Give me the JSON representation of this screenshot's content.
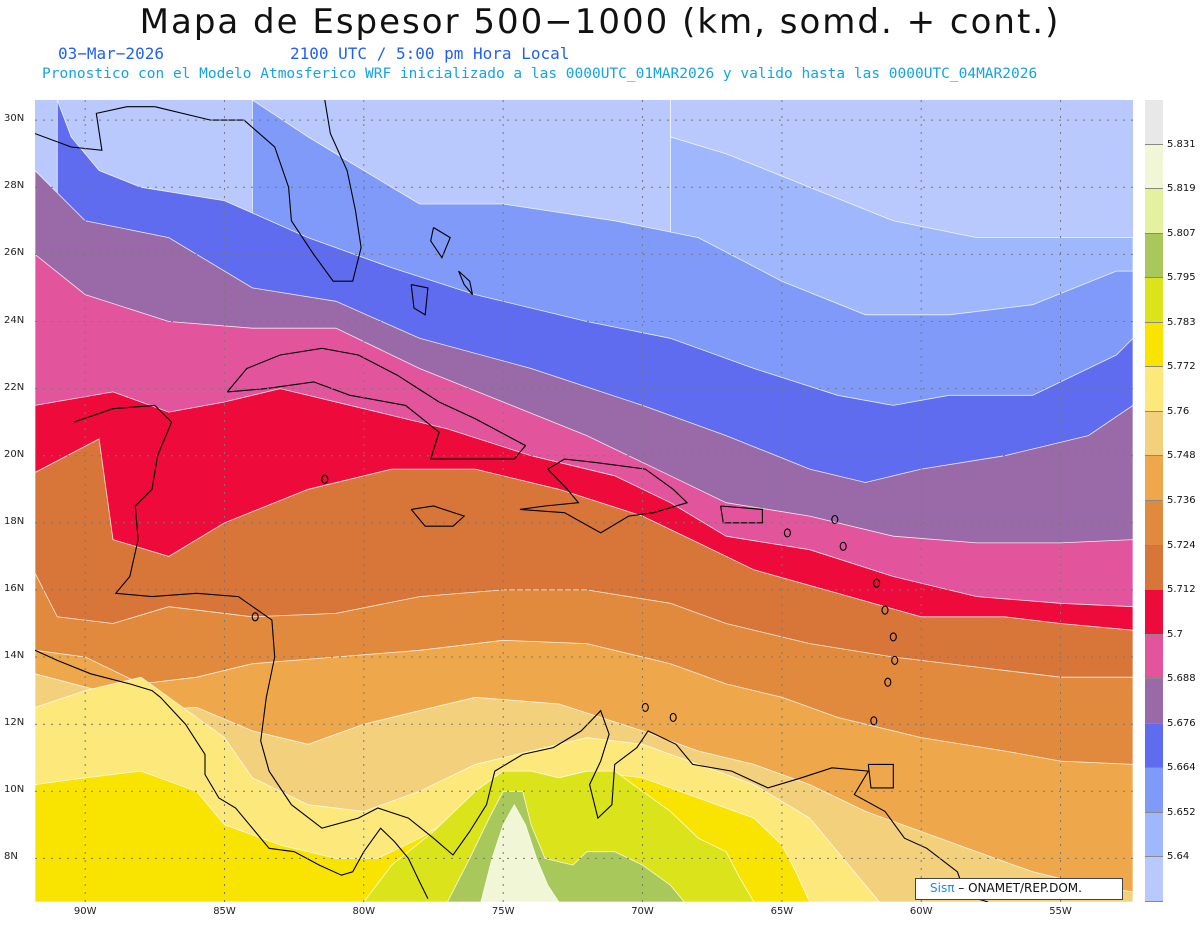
{
  "title": "Mapa de Espesor 500−1000 (km, somd. + cont.)",
  "date": "03−Mar−2026",
  "time": "2100 UTC / 5:00 pm Hora Local",
  "description": "Pronostico con el Modelo Atmosferico WRF inicializado a las 0000UTC_01MAR2026 y valido hasta las  0000UTC_04MAR2026",
  "credit": {
    "sis": "Sisπ",
    "rest": "– ONAMET/REP.DOM."
  },
  "lat_labels": [
    "30N",
    "28N",
    "26N",
    "24N",
    "22N",
    "20N",
    "18N",
    "16N",
    "14N",
    "12N",
    "10N",
    "8N"
  ],
  "lon_labels": [
    "90W",
    "85W",
    "80W",
    "75W",
    "70W",
    "65W",
    "60W",
    "55W"
  ],
  "colorbar": {
    "labels": [
      "5.831",
      "5.819",
      "5.807",
      "5.795",
      "5.783",
      "5.772",
      "5.76",
      "5.748",
      "5.736",
      "5.724",
      "5.712",
      "5.7",
      "5.688",
      "5.676",
      "5.664",
      "5.652",
      "5.64"
    ],
    "colors": [
      "#e8e8e8",
      "#f1f6d6",
      "#e4f2a0",
      "#a8c85c",
      "#dbe31a",
      "#f8e400",
      "#fde87c",
      "#f3d07c",
      "#eea84b",
      "#e18a3d",
      "#d8763a",
      "#ee0a3a",
      "#e2559c",
      "#9a6aa8",
      "#5f6cf0",
      "#7f9af8",
      "#9fb8fd",
      "#b9c8fd"
    ]
  },
  "map": {
    "projection": "plate-carree",
    "lon_range": [
      -91.8,
      -52.4
    ],
    "lat_range": [
      6.7,
      30.6
    ],
    "layers": [
      {
        "name": "5.652-5.664",
        "color": "#9fb8fd",
        "boundary": [
          [
            -69,
            30.6
          ],
          [
            -69,
            29.5
          ],
          [
            -67,
            29
          ],
          [
            -64,
            28
          ],
          [
            -61,
            27
          ],
          [
            -58,
            26.5
          ],
          [
            -55,
            26.5
          ],
          [
            -52.4,
            26.5
          ]
        ]
      },
      {
        "name": "5.664-5.676",
        "color": "#7f9af8",
        "boundary": [
          [
            -84,
            30.6
          ],
          [
            -82,
            29.5
          ],
          [
            -80,
            28.5
          ],
          [
            -78,
            27.5
          ],
          [
            -75,
            27.5
          ],
          [
            -71,
            27
          ],
          [
            -68,
            26.5
          ],
          [
            -65,
            25.2
          ],
          [
            -62,
            24.2
          ],
          [
            -59,
            24.2
          ],
          [
            -56,
            24.5
          ],
          [
            -53,
            25.5
          ],
          [
            -52.4,
            25.5
          ]
        ]
      },
      {
        "name": "5.676-5.688",
        "color": "#5f6cf0",
        "boundary": [
          [
            -91,
            30.6
          ],
          [
            -90.5,
            29.5
          ],
          [
            -89.5,
            28.5
          ],
          [
            -88,
            28
          ],
          [
            -85,
            27.6
          ],
          [
            -82,
            26.5
          ],
          [
            -79,
            25.6
          ],
          [
            -76,
            24.8
          ],
          [
            -72,
            24
          ],
          [
            -69,
            23.5
          ],
          [
            -66,
            22.6
          ],
          [
            -63,
            21.8
          ],
          [
            -61,
            21.5
          ],
          [
            -59,
            21.8
          ],
          [
            -56,
            21.8
          ],
          [
            -53,
            23
          ],
          [
            -52.4,
            23.5
          ]
        ]
      },
      {
        "name": "5.688-5.7",
        "color": "#9a6aa8",
        "boundary": [
          [
            -91.8,
            28.5
          ],
          [
            -90,
            27
          ],
          [
            -87,
            26.5
          ],
          [
            -84,
            25
          ],
          [
            -81,
            24.6
          ],
          [
            -78,
            23.5
          ],
          [
            -74,
            22.6
          ],
          [
            -70,
            21.5
          ],
          [
            -67,
            20.6
          ],
          [
            -64,
            19.6
          ],
          [
            -62,
            19.2
          ],
          [
            -60,
            19.6
          ],
          [
            -57,
            20
          ],
          [
            -54,
            20.6
          ],
          [
            -52.4,
            21.5
          ]
        ]
      },
      {
        "name": "5.7-5.712",
        "color": "#e2559c",
        "boundary": [
          [
            -91.8,
            26
          ],
          [
            -90,
            24.8
          ],
          [
            -87,
            24
          ],
          [
            -84,
            23.8
          ],
          [
            -81,
            23.8
          ],
          [
            -78,
            22.6
          ],
          [
            -75,
            21.6
          ],
          [
            -72,
            20.6
          ],
          [
            -69,
            19.4
          ],
          [
            -67,
            18.6
          ],
          [
            -64,
            18.2
          ],
          [
            -61,
            17.6
          ],
          [
            -58,
            17.4
          ],
          [
            -55,
            17.4
          ],
          [
            -52.4,
            17.5
          ]
        ]
      },
      {
        "name": "5.712-5.724",
        "color": "#ee0a3a",
        "boundary": [
          [
            -91.8,
            21.5
          ],
          [
            -89,
            21.9
          ],
          [
            -87,
            21.3
          ],
          [
            -85,
            21.6
          ],
          [
            -83,
            22
          ],
          [
            -80,
            21.4
          ],
          [
            -77,
            20.8
          ],
          [
            -74,
            20
          ],
          [
            -71,
            19.4
          ],
          [
            -69,
            18.6
          ],
          [
            -67,
            17.6
          ],
          [
            -64,
            17.2
          ],
          [
            -61,
            16.4
          ],
          [
            -58,
            15.8
          ],
          [
            -55,
            15.6
          ],
          [
            -52.4,
            15.5
          ]
        ]
      },
      {
        "name": "5.724-5.736",
        "color": "#d8763a",
        "boundary": [
          [
            -91.8,
            19.5
          ],
          [
            -89.5,
            20.5
          ],
          [
            -89,
            17.5
          ],
          [
            -87,
            17
          ],
          [
            -85,
            18
          ],
          [
            -82,
            19
          ],
          [
            -79,
            19.6
          ],
          [
            -76,
            19.6
          ],
          [
            -73,
            19
          ],
          [
            -70,
            18.2
          ],
          [
            -68,
            17.4
          ],
          [
            -66,
            16.6
          ],
          [
            -63,
            15.9
          ],
          [
            -60,
            15.2
          ],
          [
            -57,
            15.2
          ],
          [
            -55,
            15
          ],
          [
            -52.4,
            14.8
          ]
        ]
      },
      {
        "name": "5.736-5.748",
        "color": "#e18a3d",
        "boundary": [
          [
            -91.8,
            16.5
          ],
          [
            -91,
            15.2
          ],
          [
            -89,
            15
          ],
          [
            -87,
            15.5
          ],
          [
            -84,
            15.2
          ],
          [
            -81,
            15.3
          ],
          [
            -78,
            15.8
          ],
          [
            -75,
            16
          ],
          [
            -72,
            16
          ],
          [
            -69,
            15.6
          ],
          [
            -67,
            15
          ],
          [
            -64,
            14.4
          ],
          [
            -61,
            14
          ],
          [
            -58,
            13.7
          ],
          [
            -55,
            13.4
          ],
          [
            -52.4,
            13.4
          ]
        ]
      },
      {
        "name": "5.748-5.76",
        "color": "#eea84b",
        "boundary": [
          [
            -91.8,
            14.2
          ],
          [
            -90,
            14
          ],
          [
            -88,
            13.2
          ],
          [
            -86,
            13.4
          ],
          [
            -84,
            13.8
          ],
          [
            -81,
            14
          ],
          [
            -78,
            14.2
          ],
          [
            -75,
            14.5
          ],
          [
            -72,
            14.4
          ],
          [
            -69,
            13.8
          ],
          [
            -67,
            13.2
          ],
          [
            -65,
            12.8
          ],
          [
            -63,
            12.2
          ],
          [
            -60,
            11.6
          ],
          [
            -57,
            11.2
          ],
          [
            -55,
            10.9
          ],
          [
            -52.4,
            10.8
          ]
        ]
      },
      {
        "name": "5.76-5.772",
        "color": "#f3d07c",
        "boundary": [
          [
            -91.8,
            13.5
          ],
          [
            -89.5,
            13
          ],
          [
            -88,
            12.4
          ],
          [
            -86,
            12.5
          ],
          [
            -84,
            11.8
          ],
          [
            -82,
            11.4
          ],
          [
            -80,
            12
          ],
          [
            -78,
            12.4
          ],
          [
            -76,
            12.8
          ],
          [
            -73,
            12.6
          ],
          [
            -70,
            11.8
          ],
          [
            -68,
            11.2
          ],
          [
            -66,
            10.8
          ],
          [
            -64,
            10.2
          ],
          [
            -62,
            9.4
          ],
          [
            -60,
            8.8
          ],
          [
            -58,
            8.2
          ],
          [
            -56,
            7.6
          ],
          [
            -54,
            7.2
          ],
          [
            -52.4,
            7
          ]
        ]
      },
      {
        "name": "5.772-5.783",
        "color": "#fde87c",
        "boundary": [
          [
            -91.8,
            12.5
          ],
          [
            -90,
            13
          ],
          [
            -88,
            13.4
          ],
          [
            -87,
            12.8
          ],
          [
            -85,
            11.6
          ],
          [
            -84,
            10.4
          ],
          [
            -82,
            9.6
          ],
          [
            -80,
            9.4
          ],
          [
            -78,
            10
          ],
          [
            -76,
            10.8
          ],
          [
            -74,
            11.2
          ],
          [
            -72,
            11.6
          ],
          [
            -70,
            11.4
          ],
          [
            -68,
            10.8
          ],
          [
            -66,
            10.2
          ],
          [
            -64,
            9.2
          ],
          [
            -63,
            8.2
          ],
          [
            -62,
            7.2
          ],
          [
            -61.5,
            6.7
          ]
        ]
      },
      {
        "name": "5.783-5.795",
        "color": "#f8e400",
        "boundary": [
          [
            -91.8,
            10.2
          ],
          [
            -90,
            10.4
          ],
          [
            -88,
            10.6
          ],
          [
            -86,
            10
          ],
          [
            -85,
            9
          ],
          [
            -83,
            8.4
          ],
          [
            -81,
            8
          ],
          [
            -79.5,
            8
          ],
          [
            -78,
            8.6
          ],
          [
            -76,
            9.6
          ],
          [
            -74,
            10.2
          ],
          [
            -72,
            10.6
          ],
          [
            -70,
            10.4
          ],
          [
            -68,
            9.8
          ],
          [
            -66,
            9.2
          ],
          [
            -65,
            8.4
          ],
          [
            -64.5,
            7.6
          ],
          [
            -64,
            6.7
          ]
        ]
      },
      {
        "name": "5.795-5.807",
        "color": "#dbe31a",
        "boundary": [
          [
            -80,
            6.7
          ],
          [
            -79,
            7.8
          ],
          [
            -77.5,
            8.8
          ],
          [
            -76,
            10
          ],
          [
            -75,
            10.6
          ],
          [
            -74,
            10.6
          ],
          [
            -73,
            10.4
          ],
          [
            -72,
            10.6
          ],
          [
            -71,
            10.6
          ],
          [
            -70,
            10
          ],
          [
            -69,
            9.4
          ],
          [
            -68,
            8.6
          ],
          [
            -67,
            8.2
          ],
          [
            -66.5,
            7.4
          ],
          [
            -66,
            6.7
          ]
        ]
      },
      {
        "name": "5.807-5.819",
        "color": "#a8c85c",
        "boundary": [
          [
            -77,
            6.7
          ],
          [
            -76.2,
            8
          ],
          [
            -75.5,
            9.2
          ],
          [
            -75,
            10
          ],
          [
            -74.3,
            10
          ],
          [
            -74,
            9
          ],
          [
            -73.5,
            8
          ],
          [
            -72.5,
            7.8
          ],
          [
            -72,
            8.2
          ],
          [
            -71,
            8.2
          ],
          [
            -70,
            7.8
          ],
          [
            -69,
            7.2
          ],
          [
            -68.5,
            6.7
          ]
        ]
      },
      {
        "name": "5.819-5.831",
        "color": "#f1f6d6",
        "boundary": [
          [
            -75.8,
            6.7
          ],
          [
            -75.4,
            8
          ],
          [
            -75,
            9
          ],
          [
            -74.6,
            9.6
          ],
          [
            -74.2,
            9
          ],
          [
            -73.8,
            8
          ],
          [
            -73.4,
            7.2
          ],
          [
            -73,
            6.7
          ]
        ]
      }
    ]
  }
}
